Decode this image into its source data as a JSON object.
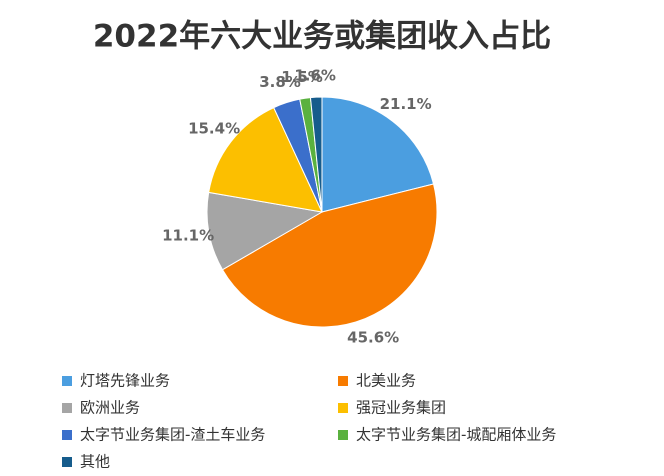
{
  "chart_data": {
    "type": "pie",
    "title": "2022年六大业务或集团收入占比",
    "categories": [
      "灯塔先锋业务",
      "北美业务",
      "欧洲业务",
      "强冠业务集团",
      "太字节业务集团-渣土车业务",
      "太字节业务集团-城配厢体业务",
      "其他"
    ],
    "values": [
      21.1,
      45.6,
      11.1,
      15.4,
      3.8,
      1.5,
      1.6
    ],
    "value_labels": [
      "21.1%",
      "45.6%",
      "11.1%",
      "15.4%",
      "3.8%",
      "1.5%",
      "1.6%"
    ],
    "colors": [
      "#4b9ee0",
      "#f77b00",
      "#a5a5a5",
      "#fcbf00",
      "#3b6fcb",
      "#5ab13f",
      "#165c8c"
    ],
    "legend": "bottom"
  }
}
